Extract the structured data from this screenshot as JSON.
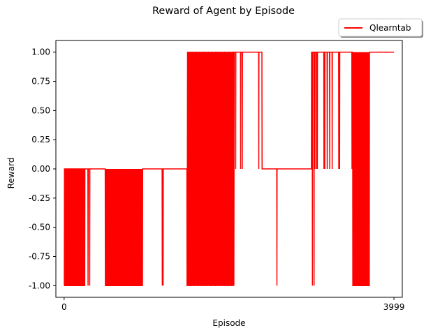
{
  "chart_data": {
    "type": "line",
    "title": "Reward of Agent by Episode",
    "xlabel": "Episode",
    "ylabel": "Reward",
    "xlim": [
      -100,
      4100
    ],
    "ylim": [
      -1.1,
      1.1
    ],
    "x_tick_labels": [
      "0",
      "3999"
    ],
    "x_tick_values": [
      0,
      3999
    ],
    "y_tick_labels": [
      "-1.00",
      "-0.75",
      "-0.50",
      "-0.25",
      "0.00",
      "0.25",
      "0.50",
      "0.75",
      "1.00"
    ],
    "y_tick_values": [
      -1.0,
      -0.75,
      -0.5,
      -0.25,
      0.0,
      0.25,
      0.5,
      0.75,
      1.0
    ],
    "grid": false,
    "legend_position": "upper-right-outside",
    "series": [
      {
        "name": "Qlearntab",
        "color": "#ff0000",
        "x_start": 0,
        "x_end": 3999,
        "episode_segments": [
          {
            "from": 0,
            "to": 10,
            "baseline": -1.0,
            "switch_episodes": []
          },
          {
            "from": 10,
            "to": 500,
            "baseline": 0.0,
            "switch_episodes": [
              22,
              35,
              40,
              47,
              58,
              70,
              95,
              120,
              150,
              165,
              180,
              230,
              290,
              310
            ]
          },
          {
            "from": 500,
            "to": 960,
            "baseline": 0.0,
            "switch_episodes": [
              505,
              520,
              540,
              550,
              615,
              645,
              660,
              705,
              825,
              855,
              880,
              950
            ]
          },
          {
            "from": 960,
            "to": 1500,
            "baseline": 0.0,
            "switch_episodes": [
              1190,
              1200
            ]
          },
          {
            "from": 1500,
            "to": 2100,
            "baseline": 1.0,
            "switch_episodes": [
              1520,
              1540,
              1580,
              1600,
              1660,
              1690,
              1710,
              1740,
              1790,
              1820,
              1850,
              1880,
              1910,
              1940,
              1970,
              2000,
              2030,
              2060,
              2080
            ]
          },
          {
            "from": 2100,
            "to": 2400,
            "baseline": 1.0,
            "switch_episodes": [
              2140,
              2160,
              2360
            ]
          },
          {
            "from": 2400,
            "to": 3000,
            "baseline": 0.0,
            "switch_episodes": [
              2580,
              3010,
              3030
            ]
          },
          {
            "from": 3000,
            "to": 3380,
            "baseline": 1.0,
            "switch_episodes": [
              3040,
              3060,
              3070,
              3150,
              3160,
              3190,
              3220,
              3250,
              3330,
              3340
            ]
          },
          {
            "from": 3380,
            "to": 3999,
            "baseline": 1.0,
            "switch_episodes": [
              3490,
              3500,
              3520,
              3680,
              3700
            ]
          }
        ],
        "dense_blocks": [
          {
            "from": 0,
            "to": 250,
            "values": [
              -1.0,
              0.0
            ],
            "period": 4
          },
          {
            "from": 500,
            "to": 950,
            "values": [
              -1.0,
              0.0
            ],
            "period": 3
          },
          {
            "from": 1490,
            "to": 2060,
            "values": [
              -1.0,
              0.0,
              1.0
            ],
            "period": 3
          },
          {
            "from": 3500,
            "to": 3700,
            "values": [
              -1.0,
              1.0
            ],
            "period": 3
          }
        ]
      }
    ]
  }
}
